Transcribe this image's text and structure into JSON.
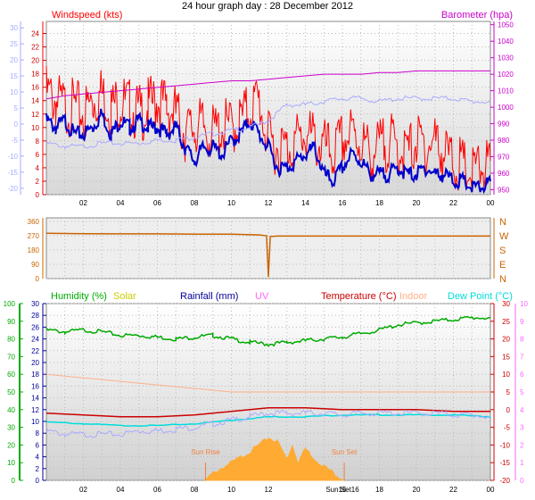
{
  "title": "24 hour graph day : 28 December 2012",
  "x_ticks": [
    "02",
    "04",
    "06",
    "08",
    "10",
    "12",
    "14",
    "16",
    "18",
    "20",
    "22",
    "00"
  ],
  "colors": {
    "windspeed": "#ff0000",
    "windavg": "#0000cc",
    "barometer": "#cc00cc",
    "windchill": "#aaaaff",
    "direction": "#c86400",
    "humidity": "#00aa00",
    "solar": "#cccc00",
    "rainfall": "#000099",
    "uv": "#ff66ff",
    "temperature": "#cc0000",
    "indoor": "#ffb088",
    "dewpoint": "#00dddd",
    "solar_fill": "#ffaa33",
    "sun_marker": "#f08040"
  },
  "chart_data": [
    {
      "type": "line",
      "name": "wind-barometer",
      "label_left": "Windspeed (kts)",
      "label_right": "Barometer (hpa)",
      "left_outer_ticks": [
        "30",
        "25",
        "20",
        "15",
        "10",
        "5",
        "0",
        "-5",
        "-10",
        "-15",
        "-20"
      ],
      "left_inner_ticks": [
        "24",
        "22",
        "20",
        "18",
        "16",
        "14",
        "12",
        "10",
        "8",
        "6",
        "4",
        "2",
        "0"
      ],
      "right_ticks": [
        "1050",
        "1040",
        "1030",
        "1020",
        "1010",
        "1000",
        "990",
        "980",
        "970",
        "960",
        "950"
      ],
      "ylim_kts": [
        0,
        25
      ],
      "ylim_hpa": [
        947,
        1052
      ],
      "ylim_outer": [
        -22,
        32
      ],
      "x_hours": [
        0,
        24
      ],
      "series": [
        {
          "key": "windspeed",
          "x": [
            0,
            0.5,
            1,
            1.5,
            2,
            2.5,
            3,
            3.5,
            4,
            4.5,
            5,
            5.5,
            6,
            6.5,
            7,
            7.5,
            8,
            8.5,
            9,
            9.5,
            10,
            10.5,
            11,
            11.5,
            11.8,
            12,
            12.5,
            13,
            13.5,
            14,
            14.5,
            15,
            15.5,
            16,
            16.5,
            17,
            17.5,
            18,
            18.5,
            19,
            19.5,
            20,
            20.5,
            21,
            21.5,
            22,
            22.5,
            23,
            23.5,
            24
          ],
          "y": [
            15,
            14,
            13,
            13,
            12,
            14,
            15,
            13,
            14,
            13,
            12,
            13,
            14,
            13,
            12,
            9,
            10,
            10,
            9,
            10,
            10,
            11,
            13,
            14,
            10,
            8,
            7,
            7,
            8,
            9,
            8,
            7,
            6,
            8,
            9,
            8,
            6,
            7,
            8,
            7,
            6,
            8,
            7,
            8,
            6,
            5,
            4,
            3,
            4,
            5
          ]
        },
        {
          "key": "windavg",
          "x": [
            0,
            0.5,
            1,
            1.5,
            2,
            2.5,
            3,
            3.5,
            4,
            4.5,
            5,
            5.5,
            6,
            6.5,
            7,
            7.5,
            8,
            8.5,
            9,
            9.5,
            10,
            10.5,
            11,
            11.5,
            12,
            12.5,
            13,
            13.5,
            14,
            14.5,
            15,
            15.5,
            16,
            16.5,
            17,
            17.5,
            18,
            18.5,
            19,
            19.5,
            20,
            20.5,
            21,
            21.5,
            22,
            22.5,
            23,
            23.5,
            24
          ],
          "y": [
            11,
            10,
            11,
            9,
            9,
            10,
            12,
            9,
            11,
            10,
            11,
            10,
            10,
            9,
            10,
            7,
            5,
            7,
            7,
            6,
            8,
            9,
            11,
            9,
            7,
            4,
            4,
            5,
            6,
            7,
            3,
            2,
            4,
            6,
            5,
            3,
            3,
            3,
            4,
            3,
            3,
            4,
            3,
            3,
            2,
            2,
            1,
            1,
            2
          ]
        },
        {
          "key": "windchill",
          "x": [
            0,
            1,
            2,
            3,
            4,
            5,
            6,
            7,
            8,
            9,
            10,
            11,
            12,
            13,
            14,
            15,
            16,
            17,
            18,
            19,
            20,
            21,
            22,
            23,
            24
          ],
          "y": [
            -6,
            -7,
            -7,
            -6,
            -6,
            -6,
            -5,
            -5,
            -4,
            -3,
            -2,
            -1,
            1,
            6,
            6,
            7,
            8,
            8,
            7,
            8,
            8,
            8,
            8,
            7,
            7
          ]
        },
        {
          "key": "barometer",
          "x": [
            0,
            1,
            2,
            3,
            4,
            5,
            6,
            7,
            8,
            9,
            10,
            11,
            12,
            13,
            14,
            15,
            16,
            17,
            18,
            19,
            20,
            21,
            22,
            23,
            24
          ],
          "y": [
            1005,
            1007,
            1008,
            1009,
            1010,
            1011,
            1012,
            1013,
            1014,
            1015,
            1016,
            1016,
            1017,
            1018,
            1019,
            1020,
            1020,
            1020,
            1021,
            1021,
            1022,
            1022,
            1022,
            1022,
            1022
          ]
        }
      ]
    },
    {
      "type": "line",
      "name": "wind-direction",
      "left_ticks": [
        "360",
        "270",
        "180",
        "90",
        "0"
      ],
      "right_ticks": [
        "N",
        "W",
        "S",
        "E",
        "N"
      ],
      "ylim": [
        0,
        360
      ],
      "series": [
        {
          "key": "direction",
          "x": [
            0,
            2,
            4,
            6,
            8,
            10,
            11.5,
            11.9,
            12,
            12.1,
            12.5,
            14,
            16,
            18,
            20,
            22,
            24
          ],
          "y": [
            285,
            283,
            282,
            282,
            280,
            280,
            275,
            270,
            10,
            265,
            268,
            268,
            268,
            268,
            268,
            268,
            268
          ]
        }
      ]
    },
    {
      "type": "line",
      "name": "humidity-temperature",
      "labels": [
        "Humidity (%)",
        "Solar",
        "Rainfall (mm)",
        "UV",
        "Temperature (°C)",
        "Indoor",
        "Dew Point (°C)"
      ],
      "humidity_ticks": [
        "100",
        "90",
        "80",
        "70",
        "60",
        "50",
        "40",
        "30",
        "20",
        "10",
        "0"
      ],
      "rain_ticks": [
        "30",
        "28",
        "26",
        "24",
        "22",
        "20",
        "18",
        "16",
        "14",
        "12",
        "10",
        "8",
        "6",
        "4",
        "2",
        "0"
      ],
      "temp_ticks": [
        "30",
        "25",
        "20",
        "15",
        "10",
        "5",
        "0",
        "-5",
        "-10",
        "-15",
        "-20"
      ],
      "uv_ticks": [
        "10",
        "9",
        "8",
        "7",
        "6",
        "5",
        "4",
        "3",
        "2",
        "1",
        "0"
      ],
      "ylim_humidity": [
        0,
        100
      ],
      "ylim_temp": [
        -20,
        30
      ],
      "sun_rise_label": "Sun Rise",
      "sun_set_label": "Sun Set",
      "sun_set_tick_label": "Sun Set16",
      "sun_rise_hour": 8.6,
      "sun_set_hour": 16.1,
      "series": [
        {
          "key": "humidity",
          "x": [
            0,
            1,
            2,
            3,
            4,
            5,
            6,
            7,
            8,
            9,
            10,
            11,
            12,
            13,
            14,
            15,
            16,
            17,
            18,
            19,
            20,
            21,
            22,
            23,
            24
          ],
          "y": [
            85,
            84,
            85,
            84,
            82,
            82,
            81,
            80,
            81,
            82,
            80,
            78,
            77,
            78,
            79,
            80,
            81,
            83,
            85,
            88,
            89,
            90,
            91,
            92,
            92
          ]
        },
        {
          "key": "indoor",
          "x": [
            0,
            2,
            4,
            6,
            8,
            10,
            12,
            14,
            16,
            18,
            20,
            22,
            24
          ],
          "y": [
            10,
            9,
            8,
            7,
            6,
            5,
            5,
            5,
            5,
            5,
            5,
            5,
            5
          ]
        },
        {
          "key": "temperature",
          "x": [
            0,
            2,
            4,
            6,
            8,
            10,
            12,
            13,
            14,
            16,
            18,
            20,
            22,
            24
          ],
          "y": [
            -1,
            -1.5,
            -2,
            -2,
            -1.5,
            -0.5,
            0.5,
            0.5,
            0.5,
            0,
            0,
            0,
            -0.5,
            -0.5
          ]
        },
        {
          "key": "dewpoint",
          "x": [
            0,
            2,
            4,
            6,
            8,
            10,
            12,
            14,
            16,
            18,
            20,
            22,
            24
          ],
          "y": [
            -3.5,
            -4,
            -4.5,
            -4.5,
            -4,
            -3,
            -2,
            -2,
            -1.5,
            -1.5,
            -1.5,
            -1.5,
            -2
          ]
        },
        {
          "key": "windchill",
          "x": [
            0,
            1,
            2,
            3,
            4,
            5,
            6,
            7,
            8,
            9,
            10,
            11,
            12,
            13,
            14,
            15,
            16,
            17,
            18,
            19,
            20,
            21,
            22,
            23,
            24
          ],
          "y": [
            -6,
            -7,
            -7,
            -7,
            -7,
            -6,
            -6,
            -5.5,
            -5,
            -4,
            -3,
            -2,
            -1,
            -1,
            -1,
            -1,
            -1.5,
            -1,
            -1,
            -1,
            -1,
            -1,
            -1.5,
            -1.5,
            -2
          ]
        },
        {
          "key": "solar",
          "x": [
            8.6,
            9,
            10,
            11,
            11.5,
            12,
            12.5,
            13,
            13.3,
            13.6,
            14,
            14.5,
            15,
            16.1
          ],
          "y": [
            0,
            0.4,
            1,
            1.6,
            2,
            2.4,
            2.2,
            1.2,
            2.0,
            1.0,
            1.8,
            1.2,
            0.8,
            0
          ]
        }
      ]
    }
  ]
}
